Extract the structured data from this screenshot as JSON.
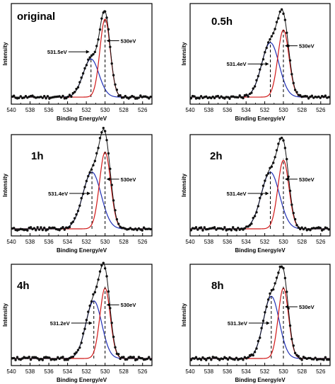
{
  "chart_data": [
    {
      "type": "line",
      "panel_label": "original",
      "xlabel": "Binding Energy/eV",
      "ylabel": "Intensity",
      "xlim": [
        540,
        525
      ],
      "x_ticks": [
        "540",
        "538",
        "536",
        "534",
        "532",
        "530",
        "528",
        "526"
      ],
      "peaks": [
        {
          "label": "531.5eV",
          "center": 531.5,
          "height": 0.42,
          "fwhm": 2.0,
          "color": "#1f2fb5"
        },
        {
          "label": "530eV",
          "center": 530.0,
          "height": 0.86,
          "fwhm": 1.3,
          "color": "#d01818"
        }
      ],
      "series": [
        {
          "values": "experimental points (black dots)",
          "color": "#111111"
        }
      ]
    },
    {
      "type": "line",
      "panel_label": "0.5h",
      "xlabel": "Binding Energy/eV",
      "ylabel": "Intensity",
      "xlim": [
        540,
        525
      ],
      "x_ticks": [
        "540",
        "538",
        "536",
        "534",
        "532",
        "530",
        "528",
        "526"
      ],
      "peaks": [
        {
          "label": "531.4eV",
          "center": 531.4,
          "height": 0.6,
          "fwhm": 2.2,
          "color": "#1f2fb5"
        },
        {
          "label": "530eV",
          "center": 530.0,
          "height": 0.74,
          "fwhm": 1.4,
          "color": "#d01818"
        }
      ]
    },
    {
      "type": "line",
      "panel_label": "1h",
      "xlabel": "Binding Energy/eV",
      "ylabel": "Intensity",
      "xlim": [
        540,
        525
      ],
      "x_ticks": [
        "540",
        "538",
        "536",
        "534",
        "532",
        "530",
        "528",
        "526"
      ],
      "peaks": [
        {
          "label": "531.4eV",
          "center": 531.4,
          "height": 0.62,
          "fwhm": 2.3,
          "color": "#1f2fb5"
        },
        {
          "label": "530eV",
          "center": 530.0,
          "height": 0.84,
          "fwhm": 1.4,
          "color": "#d01818"
        }
      ]
    },
    {
      "type": "line",
      "panel_label": "2h",
      "xlabel": "Binding Energy/eV",
      "ylabel": "Intensity",
      "xlim": [
        540,
        525
      ],
      "x_ticks": [
        "540",
        "538",
        "536",
        "534",
        "532",
        "530",
        "528",
        "526"
      ],
      "peaks": [
        {
          "label": "531.4eV",
          "center": 531.4,
          "height": 0.62,
          "fwhm": 2.3,
          "color": "#1f2fb5"
        },
        {
          "label": "530eV",
          "center": 530.0,
          "height": 0.75,
          "fwhm": 1.4,
          "color": "#d01818"
        }
      ]
    },
    {
      "type": "line",
      "panel_label": "4h",
      "xlabel": "Binding Energy/eV",
      "ylabel": "Intensity",
      "xlim": [
        540,
        525
      ],
      "x_ticks": [
        "540",
        "538",
        "536",
        "534",
        "532",
        "530",
        "528",
        "526"
      ],
      "peaks": [
        {
          "label": "531.2eV",
          "center": 531.2,
          "height": 0.63,
          "fwhm": 2.0,
          "color": "#1f2fb5"
        },
        {
          "label": "530eV",
          "center": 530.0,
          "height": 0.77,
          "fwhm": 1.3,
          "color": "#d01818"
        }
      ]
    },
    {
      "type": "line",
      "panel_label": "8h",
      "xlabel": "Binding Energy/eV",
      "ylabel": "Intensity",
      "xlim": [
        540,
        525
      ],
      "x_ticks": [
        "540",
        "538",
        "536",
        "534",
        "532",
        "530",
        "528",
        "526"
      ],
      "peaks": [
        {
          "label": "531.3eV",
          "center": 531.3,
          "height": 0.68,
          "fwhm": 2.0,
          "color": "#1f2fb5"
        },
        {
          "label": "530eV",
          "center": 530.0,
          "height": 0.77,
          "fwhm": 1.3,
          "color": "#d01818"
        }
      ]
    }
  ]
}
